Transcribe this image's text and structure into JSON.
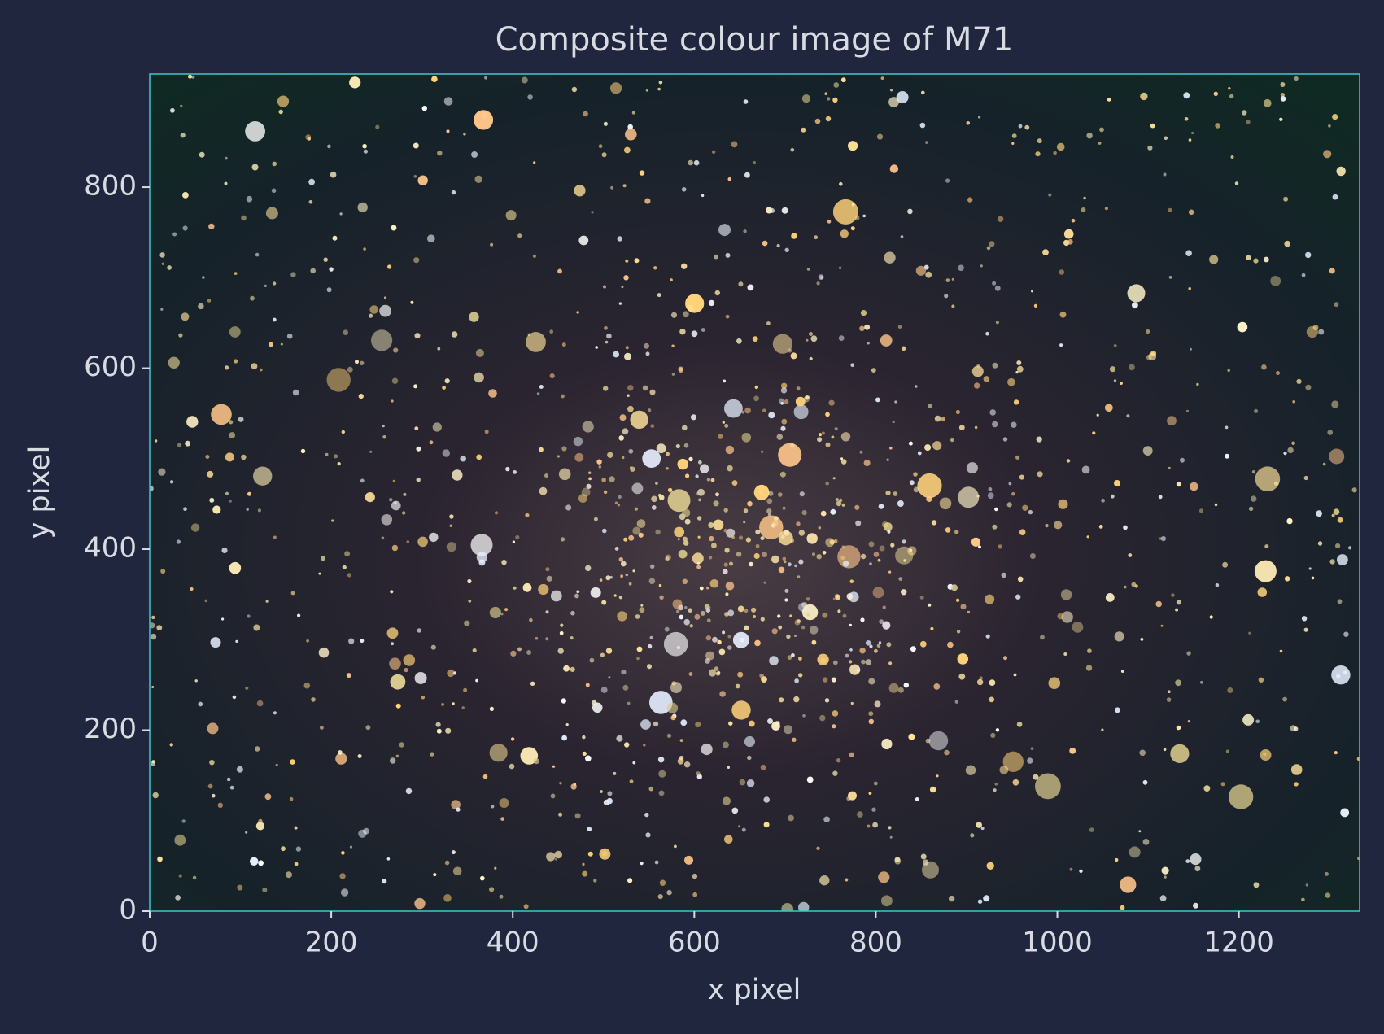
{
  "chart_data": {
    "type": "image",
    "title": "Composite colour image of M71",
    "xlabel": "x pixel",
    "ylabel": "y pixel",
    "xlim": [
      0,
      1333
    ],
    "ylim": [
      0,
      925
    ],
    "xticks": [
      0,
      200,
      400,
      600,
      800,
      1000,
      1200
    ],
    "yticks": [
      0,
      200,
      400,
      600,
      800
    ]
  }
}
